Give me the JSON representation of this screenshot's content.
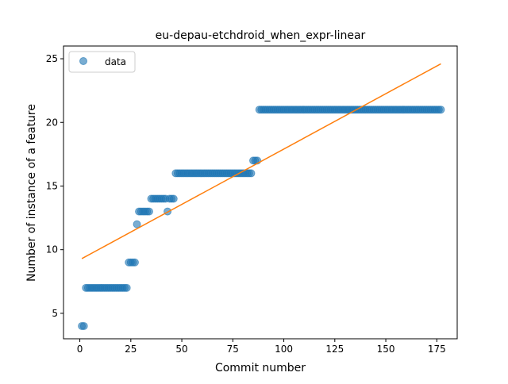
{
  "chart_data": {
    "type": "scatter",
    "title": "eu-depau-etchdroid_when_expr-linear",
    "xlabel": "Commit number",
    "ylabel": "Number of instance of a feature",
    "xlim": [
      -8,
      185
    ],
    "ylim": [
      3,
      26
    ],
    "xticks": [
      0,
      25,
      50,
      75,
      100,
      125,
      150,
      175
    ],
    "yticks": [
      5,
      10,
      15,
      20,
      25
    ],
    "grid": false,
    "legend": {
      "position": "upper-left",
      "entries": [
        "data"
      ]
    },
    "colors": {
      "points": "#1f77b4",
      "fit": "#ff7f0e"
    },
    "series": [
      {
        "name": "data",
        "kind": "scatter",
        "segments": [
          {
            "x_from": 1,
            "x_to": 2,
            "y": 4
          },
          {
            "x_from": 3,
            "x_to": 23,
            "y": 7
          },
          {
            "x_from": 24,
            "x_to": 27,
            "y": 9
          },
          {
            "x_from": 28,
            "x_to": 28,
            "y": 12
          },
          {
            "x_from": 29,
            "x_to": 34,
            "y": 13
          },
          {
            "x_from": 35,
            "x_to": 42,
            "y": 14
          },
          {
            "x_from": 43,
            "x_to": 43,
            "y": 13
          },
          {
            "x_from": 44,
            "x_to": 46,
            "y": 14
          },
          {
            "x_from": 47,
            "x_to": 84,
            "y": 16
          },
          {
            "x_from": 85,
            "x_to": 87,
            "y": 17
          },
          {
            "x_from": 88,
            "x_to": 177,
            "y": 21
          }
        ]
      },
      {
        "name": "",
        "kind": "line",
        "x": [
          1,
          177
        ],
        "y": [
          9.3,
          24.6
        ]
      }
    ]
  }
}
